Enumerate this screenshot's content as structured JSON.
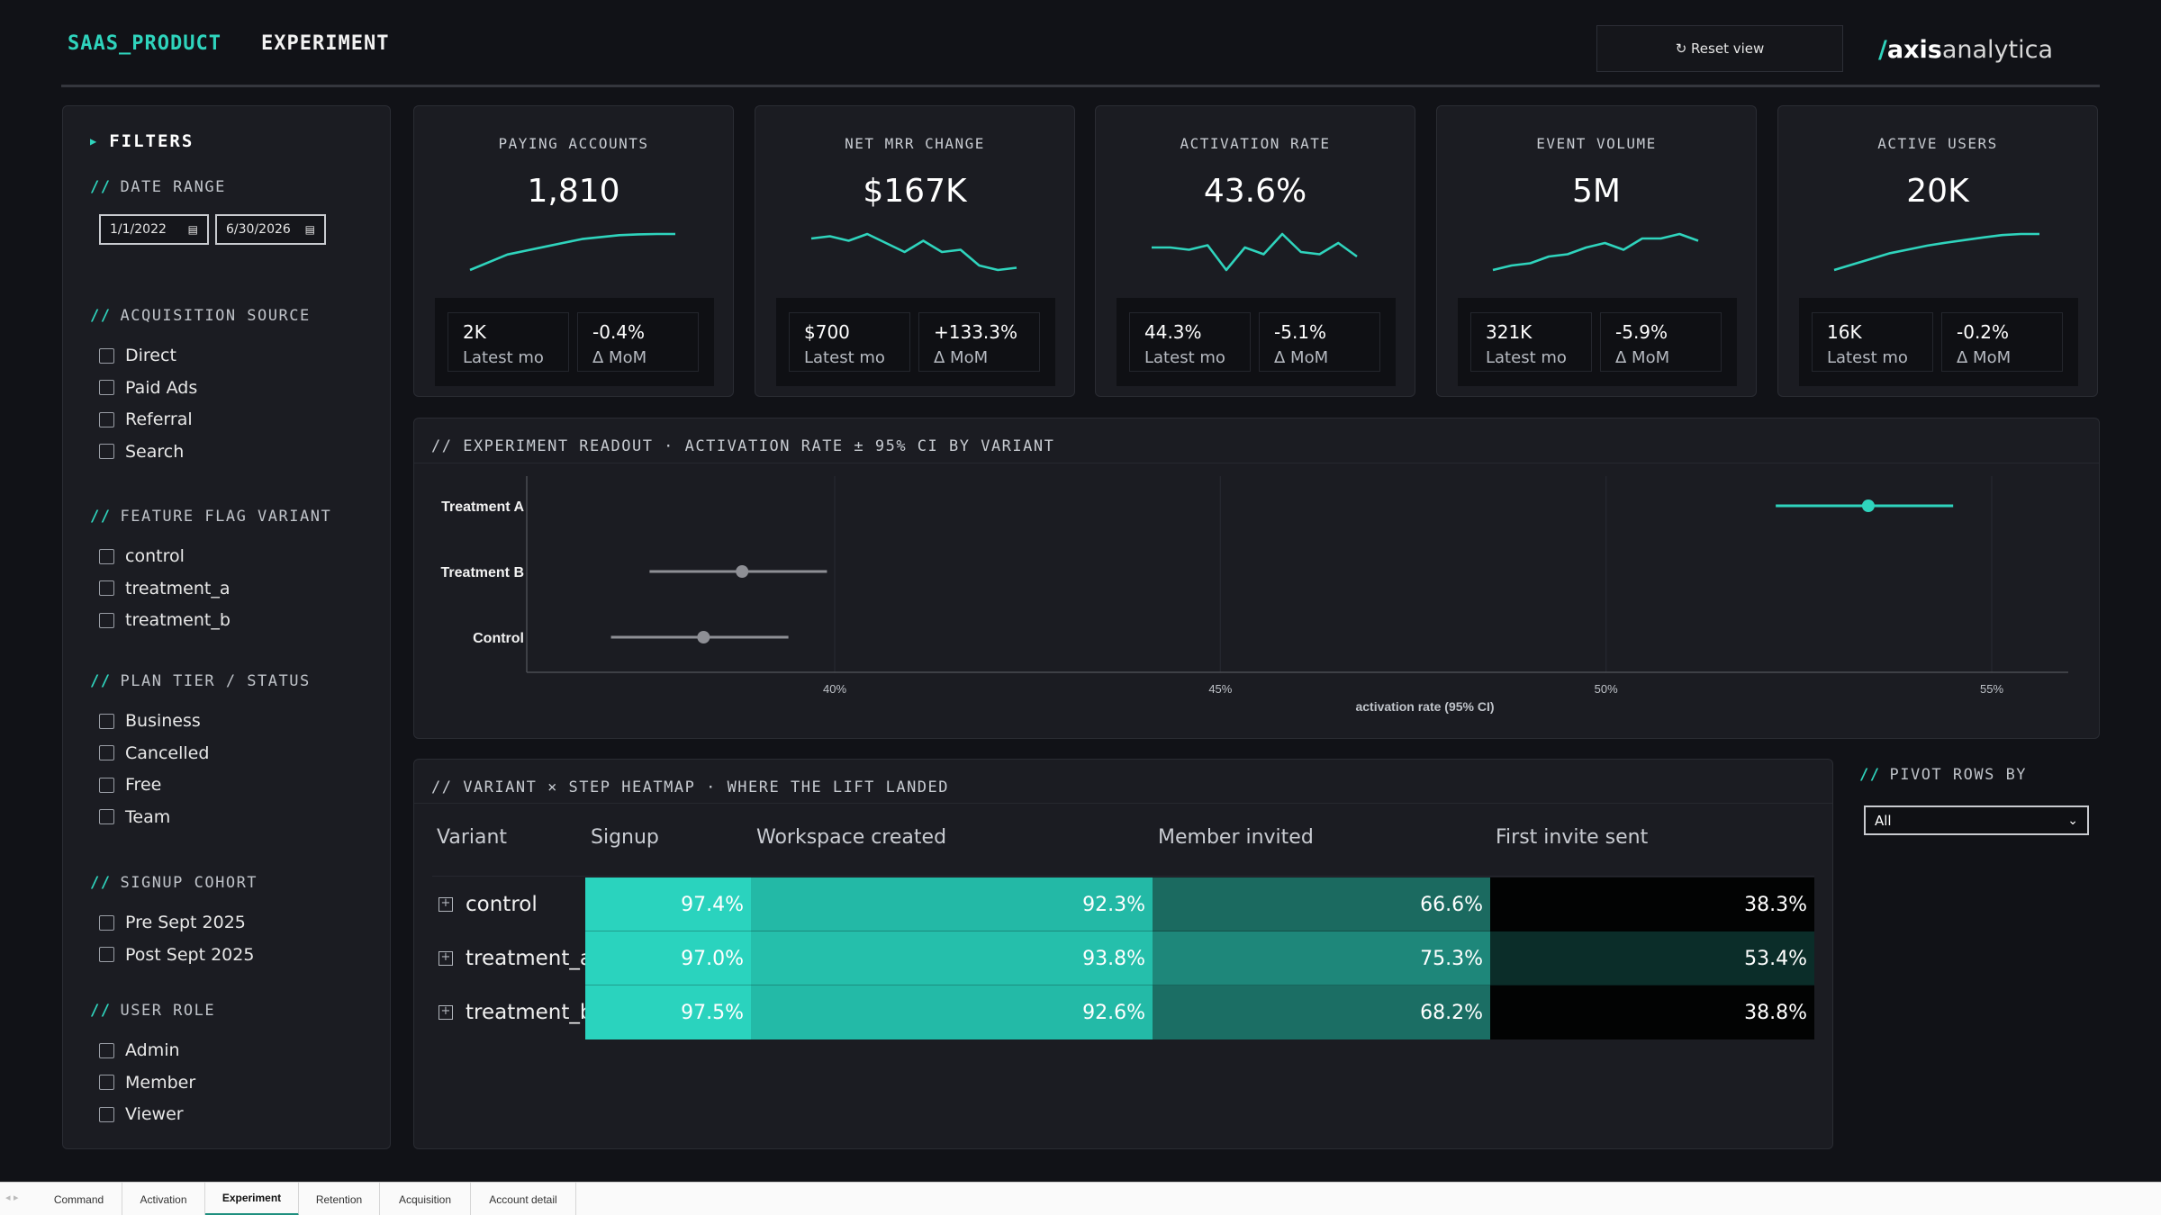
{
  "header": {
    "product": "SAAS_PRODUCT",
    "page": "EXPERIMENT",
    "reset_label": "↻ Reset view",
    "logo": {
      "slash": "/",
      "bold": "axis",
      "rest": "analytica"
    }
  },
  "filters": {
    "title": "FILTERS",
    "date_range": {
      "label": "DATE RANGE",
      "start": "1/1/2022",
      "end": "6/30/2026"
    },
    "sections": [
      {
        "label": "ACQUISITION SOURCE",
        "items": [
          "Direct",
          "Paid Ads",
          "Referral",
          "Search"
        ]
      },
      {
        "label": "FEATURE FLAG VARIANT",
        "items": [
          "control",
          "treatment_a",
          "treatment_b"
        ]
      },
      {
        "label": "PLAN TIER / STATUS",
        "items": [
          "Business",
          "Cancelled",
          "Free",
          "Team"
        ]
      },
      {
        "label": "SIGNUP COHORT",
        "items": [
          "Pre Sept 2025",
          "Post Sept 2025"
        ]
      },
      {
        "label": "USER ROLE",
        "items": [
          "Admin",
          "Member",
          "Viewer"
        ]
      }
    ]
  },
  "kpis": [
    {
      "label": "PAYING ACCOUNTS",
      "value": "1,810",
      "latest": "2K",
      "latest_label": "Latest mo",
      "mom": "-0.4%",
      "mom_label": "Δ MoM",
      "spark": [
        2,
        4,
        6,
        7,
        8,
        9,
        10,
        10.5,
        11,
        11.2,
        11.3,
        11.3
      ]
    },
    {
      "label": "NET MRR CHANGE",
      "value": "$167K",
      "latest": "$700",
      "latest_label": "Latest mo",
      "mom": "+133.3%",
      "mom_label": "Δ MoM",
      "spark": [
        9,
        9.5,
        8.5,
        10,
        8,
        6,
        8.5,
        6,
        6.5,
        3,
        2,
        2.5
      ]
    },
    {
      "label": "ACTIVATION RATE",
      "value": "43.6%",
      "latest": "44.3%",
      "latest_label": "Latest mo",
      "mom": "-5.1%",
      "mom_label": "Δ MoM",
      "spark": [
        7,
        7,
        6.5,
        7.5,
        2,
        7,
        5.5,
        10,
        6,
        5.5,
        8,
        5
      ]
    },
    {
      "label": "EVENT VOLUME",
      "value": "5M",
      "latest": "321K",
      "latest_label": "Latest mo",
      "mom": "-5.9%",
      "mom_label": "Δ MoM",
      "spark": [
        2,
        3,
        3.5,
        5,
        5.5,
        7,
        8,
        6.5,
        9,
        9,
        10,
        8.5
      ]
    },
    {
      "label": "ACTIVE USERS",
      "value": "20K",
      "latest": "16K",
      "latest_label": "Latest mo",
      "mom": "-0.2%",
      "mom_label": "Δ MoM",
      "spark": [
        1,
        2.5,
        4,
        5.5,
        6.5,
        7.5,
        8.3,
        9,
        9.7,
        10.3,
        10.6,
        10.6
      ]
    }
  ],
  "readout": {
    "title": "// EXPERIMENT READOUT · ACTIVATION RATE ± 95% CI BY VARIANT"
  },
  "chart_data": {
    "type": "scatter",
    "title": "",
    "xlabel": "activation rate (95% CI)",
    "ylabel": "",
    "xlim": [
      36,
      55.5
    ],
    "xticks": [
      40,
      45,
      50,
      55
    ],
    "xtick_labels": [
      "40%",
      "45%",
      "50%",
      "55%"
    ],
    "grid": true,
    "series": [
      {
        "name": "Treatment A",
        "point": 53.4,
        "ci_low": 52.2,
        "ci_high": 54.5,
        "color": "#2fd4bd"
      },
      {
        "name": "Treatment B",
        "point": 38.8,
        "ci_low": 37.6,
        "ci_high": 39.9,
        "color": "#8e8f95"
      },
      {
        "name": "Control",
        "point": 38.3,
        "ci_low": 37.1,
        "ci_high": 39.4,
        "color": "#8e8f95"
      }
    ]
  },
  "heatmap": {
    "title": "// VARIANT × STEP HEATMAP · WHERE THE LIFT LANDED",
    "columns": [
      "Variant",
      "Signup",
      "Workspace created",
      "Member invited",
      "First invite sent"
    ],
    "rows": [
      {
        "variant": "control",
        "values": [
          "97.4%",
          "92.3%",
          "66.6%",
          "38.3%"
        ],
        "colors": [
          "#2ad3be",
          "#23b9a6",
          "#1b6a60",
          "#020303"
        ]
      },
      {
        "variant": "treatment_a",
        "values": [
          "97.0%",
          "93.8%",
          "75.3%",
          "53.4%"
        ],
        "colors": [
          "#2ad3be",
          "#25bfab",
          "#1e877a",
          "#0b2d29"
        ]
      },
      {
        "variant": "treatment_b",
        "values": [
          "97.5%",
          "92.6%",
          "68.2%",
          "38.8%"
        ],
        "colors": [
          "#2ad3be",
          "#23baa7",
          "#1b6e64",
          "#020303"
        ]
      }
    ],
    "plus": "+"
  },
  "pivot": {
    "label": "PIVOT ROWS BY",
    "value": "All"
  },
  "tabs": [
    "Command",
    "Activation",
    "Experiment",
    "Retention",
    "Acquisition",
    "Account detail"
  ],
  "active_tab": "Experiment"
}
